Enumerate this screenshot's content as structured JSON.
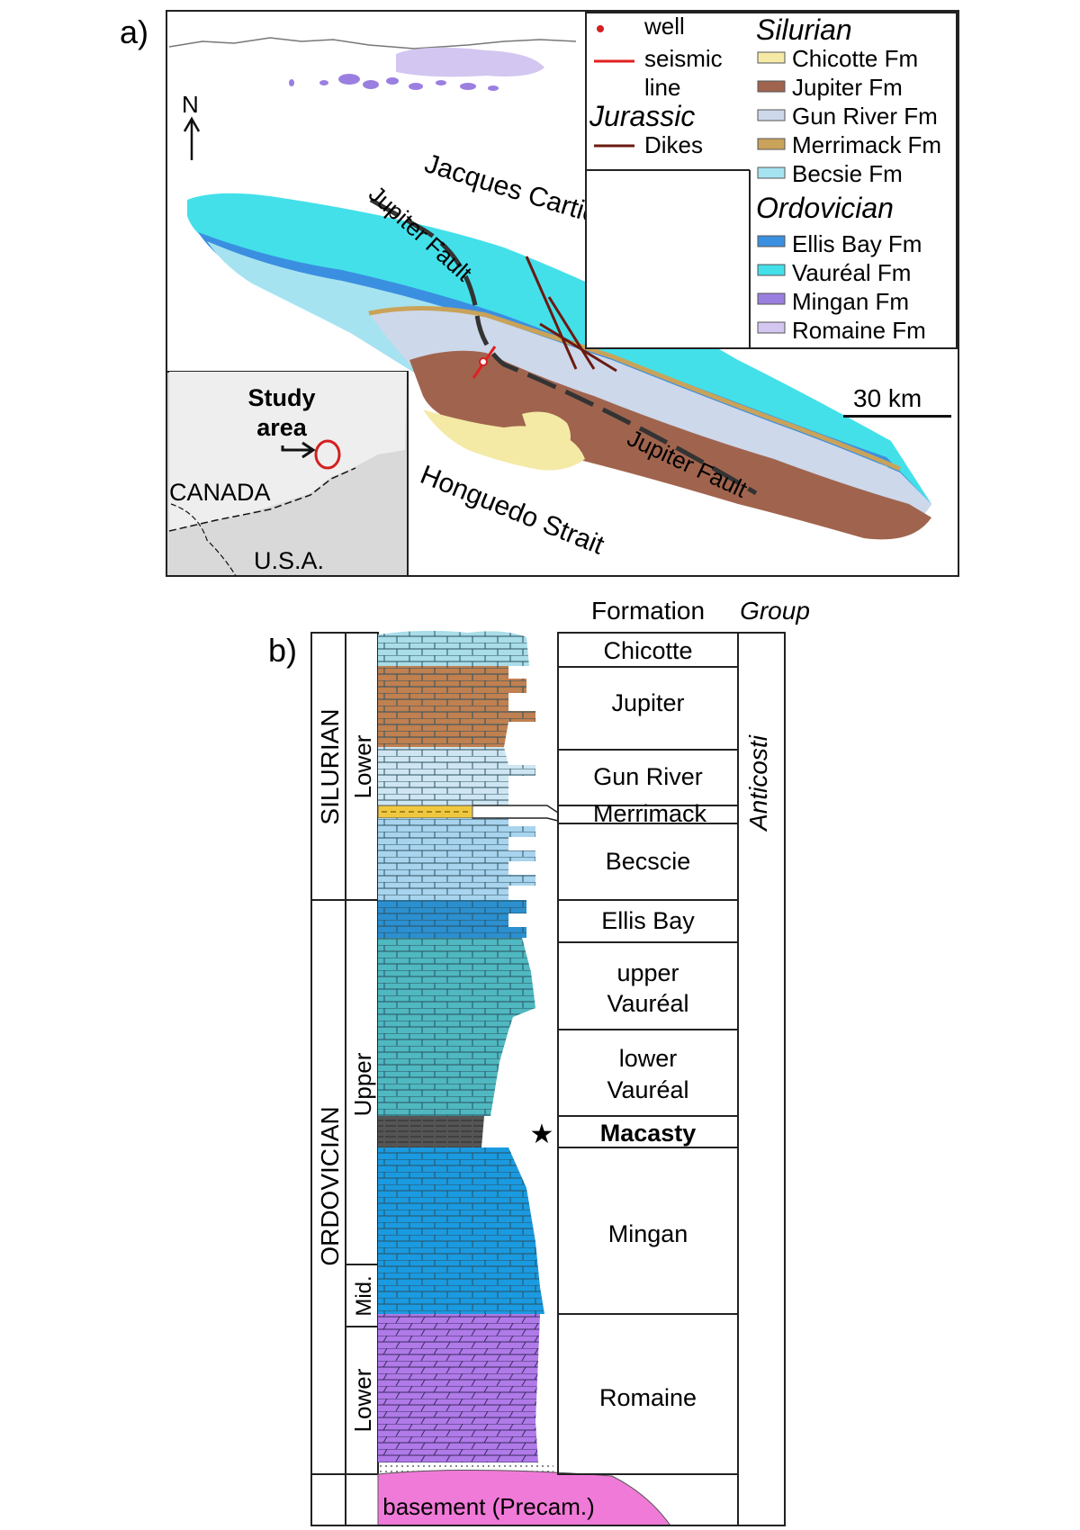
{
  "panel_a": {
    "label": "a)",
    "north_label": "N",
    "scale_bar_label": "30 km",
    "straits": {
      "north": "Jacques Cartier Strait",
      "south": "Honguedo Strait"
    },
    "faults": [
      "Jupiter Fault",
      "Jupiter Fault"
    ],
    "inset": {
      "study_area": [
        "Study",
        "area"
      ],
      "countries": [
        "CANADA",
        "U.S.A."
      ]
    },
    "legend": {
      "well": "well",
      "seismic": [
        "seismic",
        "line"
      ],
      "jurassic_title": "Jurassic",
      "dikes": "Dikes",
      "silurian_title": "Silurian",
      "silurian": [
        {
          "label": "Chicotte Fm",
          "color": "#f4eaa6"
        },
        {
          "label": "Jupiter Fm",
          "color": "#a0644e"
        },
        {
          "label": "Gun River Fm",
          "color": "#cdd8ea"
        },
        {
          "label": "Merrimack Fm",
          "color": "#c9a35a"
        },
        {
          "label": "Becsie Fm",
          "color": "#a6e3f0"
        }
      ],
      "ordovician_title": "Ordovician",
      "ordovician": [
        {
          "label": "Ellis Bay Fm",
          "color": "#3b8fe0"
        },
        {
          "label": "Vauréal Fm",
          "color": "#43e0ea"
        },
        {
          "label": "Mingan Fm",
          "color": "#9b7fe0"
        },
        {
          "label": "Romaine Fm",
          "color": "#d3c6f0"
        }
      ],
      "symbol_colors": {
        "well": "#d32020",
        "seismic": "#e02020",
        "dikes": "#6b1a10"
      }
    }
  },
  "panel_b": {
    "label": "b)",
    "header_formation": "Formation",
    "header_group": "Group",
    "systems": [
      "SILURIAN",
      "ORDOVICIAN"
    ],
    "series": [
      "Lower",
      "Upper",
      "Mid.",
      "Lower"
    ],
    "group": "Anticosti",
    "formations": [
      "Chicotte",
      "Jupiter",
      "Gun River",
      "Merrimack",
      "Becscie",
      "Ellis Bay",
      [
        "upper",
        "Vauréal"
      ],
      [
        "lower",
        "Vauréal"
      ],
      "Macasty",
      "Mingan",
      "Romaine",
      "basement (Precam.)"
    ],
    "star_symbol": "★",
    "column_colors": {
      "chicotte": "#a9dde8",
      "jupiter": "#c08050",
      "gun_river": "#cfe6f2",
      "merrimack": "#f0c840",
      "becscie": "#a9d4ee",
      "ellis_bay": "#2b8fd0",
      "vaureal": "#4fb8c0",
      "macasty": "#555555",
      "mingan": "#1a9ae0",
      "romaine": "#b07ae8",
      "basement": "#f07ad8"
    }
  }
}
